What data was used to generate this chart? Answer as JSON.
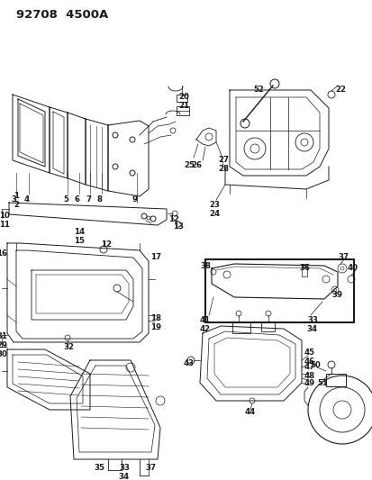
{
  "title": "92708  4500A",
  "bg_color": "#ffffff",
  "line_color": "#1a1a1a",
  "title_fontsize": 9.5,
  "label_fontsize": 6.2,
  "fig_width": 4.14,
  "fig_height": 5.33,
  "dpi": 100
}
